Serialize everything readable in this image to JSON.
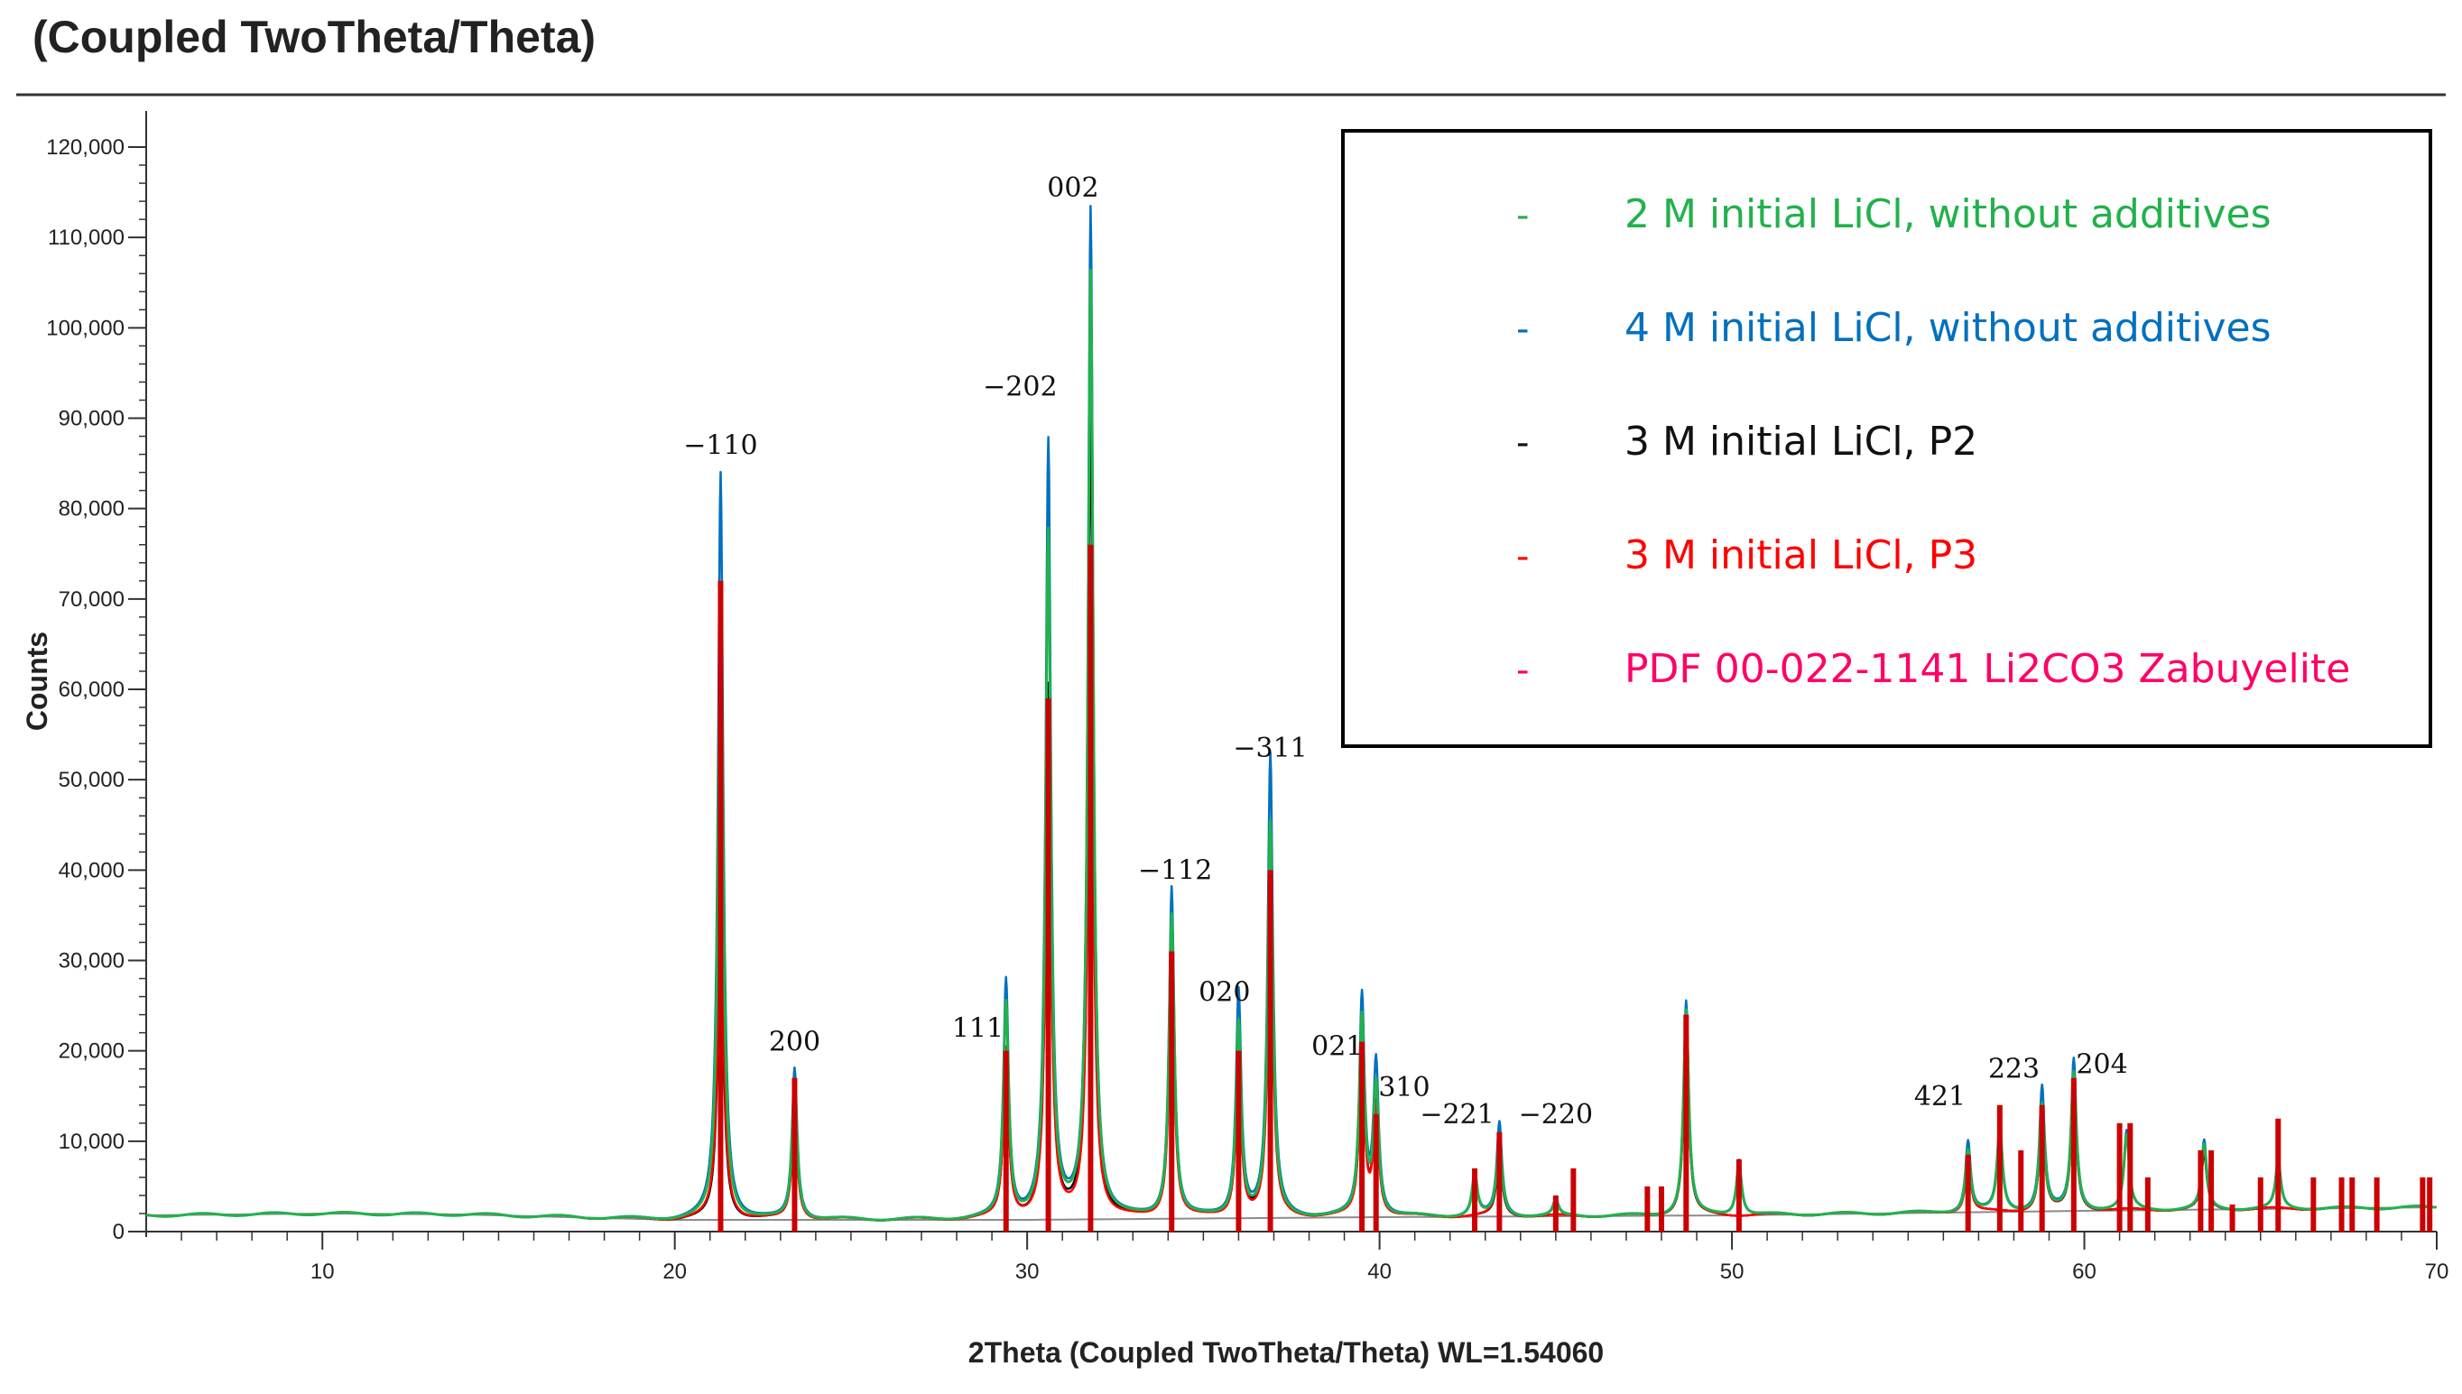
{
  "chart_data": {
    "type": "line",
    "title": "(Coupled TwoTheta/Theta)",
    "xlabel": "2Theta (Coupled TwoTheta/Theta) WL=1.54060",
    "ylabel": "Counts",
    "xlim": [
      5,
      70
    ],
    "ylim": [
      0,
      120000
    ],
    "x_ticks": [
      10,
      20,
      30,
      40,
      50,
      60,
      70
    ],
    "y_ticks": [
      0,
      10000,
      20000,
      30000,
      40000,
      50000,
      60000,
      70000,
      80000,
      90000,
      100000,
      110000,
      120000
    ],
    "y_tick_labels": [
      "0",
      "10,000",
      "20,000",
      "30,000",
      "40,000",
      "50,000",
      "60,000",
      "70,000",
      "80,000",
      "90,000",
      "100,000",
      "110,000",
      "120,000"
    ],
    "background": [
      [
        5,
        1800
      ],
      [
        10,
        2000
      ],
      [
        14,
        1900
      ],
      [
        20,
        1300
      ],
      [
        30,
        1300
      ],
      [
        40,
        1600
      ],
      [
        50,
        1800
      ],
      [
        60,
        2300
      ],
      [
        70,
        2700
      ]
    ],
    "series": [
      {
        "name": "2 M initial LiCl, without additives",
        "color": "#22b14c",
        "peaks": [
          [
            21.3,
            70000
          ],
          [
            23.4,
            16000
          ],
          [
            29.4,
            25000
          ],
          [
            30.6,
            77000
          ],
          [
            31.8,
            106000
          ],
          [
            34.1,
            35000
          ],
          [
            36.0,
            23000
          ],
          [
            36.9,
            45000
          ],
          [
            39.5,
            23500
          ],
          [
            39.9,
            16000
          ],
          [
            42.7,
            6000
          ],
          [
            43.4,
            10500
          ],
          [
            45.0,
            3200
          ],
          [
            48.7,
            24500
          ],
          [
            50.2,
            7500
          ],
          [
            56.7,
            9000
          ],
          [
            57.6,
            11000
          ],
          [
            58.8,
            14000
          ],
          [
            59.7,
            17500
          ],
          [
            61.2,
            10500
          ],
          [
            63.4,
            9500
          ],
          [
            65.5,
            7500
          ]
        ]
      },
      {
        "name": "4 M initial LiCl, without additives",
        "color": "#0070c0",
        "peaks": [
          [
            21.3,
            84000
          ],
          [
            23.4,
            18000
          ],
          [
            29.4,
            27500
          ],
          [
            30.6,
            87000
          ],
          [
            31.8,
            113000
          ],
          [
            34.1,
            38000
          ],
          [
            36.0,
            26500
          ],
          [
            36.9,
            52500
          ],
          [
            39.5,
            25800
          ],
          [
            39.9,
            18500
          ],
          [
            42.7,
            6500
          ],
          [
            43.4,
            12000
          ],
          [
            45.0,
            3500
          ],
          [
            48.7,
            25500
          ],
          [
            50.2,
            8000
          ],
          [
            56.7,
            10000
          ],
          [
            57.6,
            12000
          ],
          [
            58.8,
            16000
          ],
          [
            59.7,
            19000
          ],
          [
            61.2,
            11000
          ],
          [
            63.4,
            10000
          ],
          [
            65.5,
            8000
          ]
        ]
      },
      {
        "name": "3 M initial LiCl, P2",
        "color": "#000000",
        "peaks": [
          [
            21.3,
            40000
          ],
          [
            23.4,
            14000
          ],
          [
            29.4,
            20000
          ],
          [
            30.6,
            60000
          ],
          [
            31.8,
            90000
          ],
          [
            34.1,
            32000
          ],
          [
            36.0,
            20000
          ],
          [
            36.9,
            42000
          ],
          [
            39.5,
            20000
          ],
          [
            39.9,
            14000
          ],
          [
            43.4,
            9000
          ],
          [
            48.7,
            22000
          ],
          [
            56.7,
            8000
          ],
          [
            58.8,
            13000
          ],
          [
            59.7,
            16000
          ],
          [
            63.4,
            8500
          ]
        ]
      },
      {
        "name": "3 M initial LiCl, P3",
        "color": "#ff0000",
        "peaks": [
          [
            21.3,
            45000
          ],
          [
            23.4,
            13500
          ],
          [
            29.4,
            20000
          ],
          [
            30.6,
            58000
          ],
          [
            31.8,
            75000
          ],
          [
            34.1,
            30000
          ],
          [
            36.0,
            19000
          ],
          [
            36.9,
            37000
          ],
          [
            39.5,
            19500
          ],
          [
            39.9,
            13500
          ],
          [
            43.4,
            10000
          ],
          [
            48.7,
            23000
          ],
          [
            56.7,
            8000
          ],
          [
            58.8,
            13000
          ],
          [
            59.7,
            17000
          ],
          [
            63.4,
            9000
          ]
        ]
      },
      {
        "name": "PDF 00-022-1141 Li2CO3 Zabuyelite",
        "color": "#cc0000",
        "type": "stick",
        "sticks": [
          [
            21.3,
            72000
          ],
          [
            23.4,
            17000
          ],
          [
            29.4,
            20000
          ],
          [
            30.6,
            59000
          ],
          [
            31.8,
            76000
          ],
          [
            34.1,
            31000
          ],
          [
            36.0,
            20000
          ],
          [
            36.9,
            40000
          ],
          [
            39.5,
            21000
          ],
          [
            39.9,
            13000
          ],
          [
            42.7,
            7000
          ],
          [
            43.4,
            11000
          ],
          [
            45.0,
            4000
          ],
          [
            45.5,
            7000
          ],
          [
            47.6,
            5000
          ],
          [
            48.0,
            5000
          ],
          [
            48.7,
            24000
          ],
          [
            50.2,
            8000
          ],
          [
            56.7,
            8500
          ],
          [
            57.6,
            14000
          ],
          [
            58.2,
            9000
          ],
          [
            58.8,
            14000
          ],
          [
            59.7,
            17000
          ],
          [
            61.0,
            12000
          ],
          [
            61.3,
            12000
          ],
          [
            61.8,
            6000
          ],
          [
            63.3,
            9000
          ],
          [
            63.6,
            9000
          ],
          [
            64.2,
            3000
          ],
          [
            65.0,
            6000
          ],
          [
            65.5,
            12500
          ],
          [
            66.5,
            6000
          ],
          [
            67.3,
            6000
          ],
          [
            67.6,
            6000
          ],
          [
            68.3,
            6000
          ],
          [
            69.6,
            6000
          ],
          [
            69.8,
            6000
          ]
        ]
      }
    ],
    "annotations": [
      {
        "text": "−110",
        "x": 21.3,
        "y": 86000
      },
      {
        "text": "200",
        "x": 23.4,
        "y": 20000
      },
      {
        "text": "111",
        "x": 28.6,
        "y": 21500
      },
      {
        "text": "−202",
        "x": 29.8,
        "y": 92500
      },
      {
        "text": "002",
        "x": 31.3,
        "y": 114500
      },
      {
        "text": "−112",
        "x": 34.2,
        "y": 39000
      },
      {
        "text": "020",
        "x": 35.6,
        "y": 25500
      },
      {
        "text": "−311",
        "x": 36.9,
        "y": 52500
      },
      {
        "text": "021",
        "x": 38.8,
        "y": 19500
      },
      {
        "text": "310",
        "x": 40.7,
        "y": 15000
      },
      {
        "text": "−221",
        "x": 42.2,
        "y": 12000
      },
      {
        "text": "−220",
        "x": 45.0,
        "y": 12000
      },
      {
        "text": "421",
        "x": 55.9,
        "y": 14000
      },
      {
        "text": "223",
        "x": 58.0,
        "y": 17000
      },
      {
        "text": "204",
        "x": 60.5,
        "y": 17500
      }
    ],
    "legend": {
      "position": "top-right",
      "marker": "-",
      "entries": [
        {
          "label": "2 M initial LiCl, without additives",
          "color": "#22b14c"
        },
        {
          "label": "4 M initial LiCl, without additives",
          "color": "#0070c0"
        },
        {
          "label": "3 M initial LiCl, P2",
          "color": "#111111"
        },
        {
          "label": "3 M initial LiCl, P3",
          "color": "#ff0000"
        },
        {
          "label": "PDF 00-022-1141 Li2CO3 Zabuyelite",
          "color": "#ff0066"
        }
      ]
    }
  }
}
